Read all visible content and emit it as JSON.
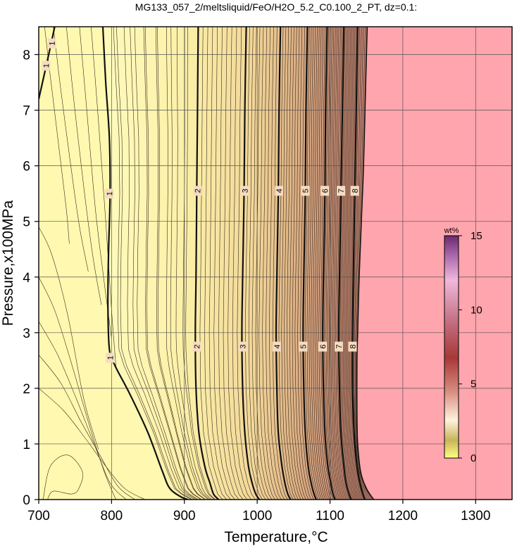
{
  "chart_data": {
    "type": "contour",
    "title": "MG133_057_2/meltsliquid/FeO/H2O_5.2_C0.100_2_PT, dz=0.1:",
    "xlabel": "Temperature,°C",
    "ylabel": "Pressure,x100MPa",
    "xlim": [
      700,
      1350
    ],
    "ylim": [
      0,
      8.5
    ],
    "xticks": [
      700,
      800,
      900,
      1000,
      1100,
      1200,
      1300
    ],
    "yticks": [
      0,
      1,
      2,
      3,
      4,
      5,
      6,
      7,
      8
    ],
    "grid": true,
    "colorbar": {
      "title": "wt%",
      "range": [
        0,
        15
      ],
      "ticks": [
        0,
        5,
        10,
        15
      ],
      "placement": "right-inside"
    },
    "colors": {
      "low": "#fff8b0",
      "high": "#c07070",
      "no_data": "#ffa5ad"
    },
    "liquidus_boundary": {
      "T": [
        1151,
        1149,
        1146,
        1143,
        1140,
        1138,
        1137,
        1137,
        1138,
        1142,
        1150,
        1160
      ],
      "P": [
        8.5,
        7.5,
        6.0,
        5.0,
        4.0,
        3.0,
        2.5,
        1.5,
        1.0,
        0.5,
        0.2,
        0.0
      ]
    },
    "labeled_contours": [
      {
        "level": 1,
        "T": [
          788,
          792,
          797,
          798,
          796,
          795,
          797,
          805,
          825,
          850,
          870,
          880,
          895,
          905
        ],
        "P": [
          8.5,
          7.5,
          6.5,
          5.5,
          4.5,
          3.5,
          2.7,
          2.4,
          1.9,
          1.2,
          0.5,
          0.2,
          0.05,
          0.0
        ],
        "label_at": [
          [
            797,
            5.5
          ],
          [
            798,
            2.55
          ]
        ]
      },
      {
        "level": 1,
        "T": [
          700,
          712,
          722
        ],
        "P": [
          7.2,
          7.9,
          8.5
        ],
        "label_at": [
          [
            710,
            7.8
          ],
          [
            718,
            8.2
          ]
        ]
      },
      {
        "level": 2,
        "T": [
          919,
          918,
          917,
          916,
          915,
          916,
          920,
          928,
          935,
          940,
          947
        ],
        "P": [
          8.5,
          7.0,
          5.5,
          4.0,
          3.0,
          2.0,
          1.2,
          0.6,
          0.3,
          0.1,
          0.0
        ],
        "label_at": [
          [
            918,
            5.55
          ],
          [
            917,
            2.75
          ]
        ]
      },
      {
        "level": 3,
        "T": [
          985,
          983,
          982,
          980,
          979,
          980,
          983,
          988,
          993,
          998,
          1003
        ],
        "P": [
          8.5,
          7.0,
          5.5,
          4.0,
          3.0,
          2.0,
          1.2,
          0.6,
          0.3,
          0.1,
          0.0
        ],
        "label_at": [
          [
            983,
            5.55
          ],
          [
            980,
            2.75
          ]
        ]
      },
      {
        "level": 4,
        "T": [
          1032,
          1030,
          1029,
          1027,
          1026,
          1027,
          1029,
          1034,
          1038,
          1042,
          1046
        ],
        "P": [
          8.5,
          7.0,
          5.5,
          4.0,
          3.0,
          2.0,
          1.2,
          0.6,
          0.3,
          0.1,
          0.0
        ],
        "label_at": [
          [
            1030,
            5.55
          ],
          [
            1027,
            2.75
          ]
        ]
      },
      {
        "level": 5,
        "T": [
          1069,
          1067,
          1066,
          1064,
          1063,
          1064,
          1066,
          1070,
          1074,
          1078,
          1081
        ],
        "P": [
          8.5,
          7.0,
          5.5,
          4.0,
          3.0,
          2.0,
          1.2,
          0.6,
          0.3,
          0.1,
          0.0
        ],
        "label_at": [
          [
            1066,
            5.55
          ],
          [
            1063,
            2.75
          ]
        ]
      },
      {
        "level": 6,
        "T": [
          1096,
          1094,
          1093,
          1091,
          1090,
          1091,
          1093,
          1097,
          1101,
          1104,
          1107
        ],
        "P": [
          8.5,
          7.0,
          5.5,
          4.0,
          3.0,
          2.0,
          1.2,
          0.6,
          0.3,
          0.1,
          0.0
        ],
        "label_at": [
          [
            1093,
            5.55
          ],
          [
            1090,
            2.75
          ]
        ]
      },
      {
        "level": 7,
        "T": [
          1119,
          1117,
          1115,
          1113,
          1112,
          1113,
          1115,
          1119,
          1122,
          1126,
          1129
        ],
        "P": [
          8.5,
          7.0,
          5.5,
          4.0,
          3.0,
          2.0,
          1.2,
          0.6,
          0.3,
          0.1,
          0.0
        ],
        "label_at": [
          [
            1115,
            5.55
          ],
          [
            1112,
            2.75
          ]
        ]
      },
      {
        "level": 8,
        "T": [
          1138,
          1136,
          1134,
          1132,
          1131,
          1131,
          1133,
          1137,
          1141,
          1145,
          1148
        ],
        "P": [
          8.5,
          7.0,
          5.5,
          4.0,
          3.0,
          2.0,
          1.2,
          0.6,
          0.3,
          0.1,
          0.0
        ],
        "label_at": [
          [
            1134,
            5.55
          ],
          [
            1131,
            2.75
          ]
        ]
      }
    ],
    "contour_labels": [
      "1",
      "1",
      "2",
      "3",
      "4",
      "5",
      "6",
      "7",
      "8"
    ]
  }
}
